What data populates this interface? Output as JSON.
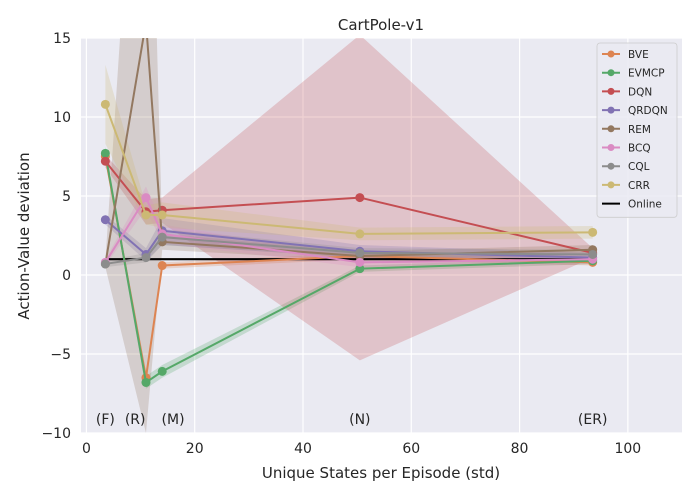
{
  "chart_data": {
    "type": "line",
    "title": "CartPole-v1",
    "xlabel": "Unique States per Episode (std)",
    "ylabel": "Action-Value deviation",
    "xlim": [
      -1,
      110
    ],
    "ylim": [
      -10,
      15
    ],
    "xticks": [
      0,
      20,
      40,
      60,
      80,
      100
    ],
    "yticks": [
      -10,
      -5,
      0,
      5,
      10,
      15
    ],
    "xtick_labels": [
      "0",
      "20",
      "40",
      "60",
      "80",
      "100"
    ],
    "ytick_labels": [
      "−10",
      "−5",
      "0",
      "5",
      "10",
      "15"
    ],
    "grid": true,
    "legend_position": "top-right",
    "x": [
      3.5,
      11,
      14,
      50.5,
      93.5
    ],
    "series": [
      {
        "name": "BVE",
        "color": "#dd8452",
        "values": [
          7.5,
          -6.5,
          0.6,
          1.2,
          0.8
        ],
        "band": [
          [
            7.2,
            7.8
          ],
          [
            -6.9,
            -6.1
          ],
          [
            0.4,
            0.8
          ],
          [
            1.0,
            1.4
          ],
          [
            0.6,
            1.0
          ]
        ]
      },
      {
        "name": "EVMCP",
        "color": "#55a868",
        "values": [
          7.7,
          -6.8,
          -6.1,
          0.4,
          0.9
        ],
        "band": [
          [
            7.3,
            8.1
          ],
          [
            -7.2,
            -6.4
          ],
          [
            -6.5,
            -5.7
          ],
          [
            0.2,
            0.6
          ],
          [
            0.7,
            1.1
          ]
        ]
      },
      {
        "name": "DQN",
        "color": "#c44e52",
        "values": [
          7.2,
          4.0,
          4.1,
          4.9,
          1.4
        ],
        "band": [
          [
            6.8,
            7.6
          ],
          [
            3.2,
            4.8
          ],
          [
            3.3,
            4.9
          ],
          [
            -5.4,
            15.2
          ],
          [
            1.1,
            1.7
          ]
        ]
      },
      {
        "name": "QRDQN",
        "color": "#8172b3",
        "values": [
          3.5,
          1.3,
          2.8,
          1.5,
          1.1
        ],
        "band": [
          [
            3.2,
            3.8
          ],
          [
            0.9,
            1.7
          ],
          [
            1.9,
            3.6
          ],
          [
            1.1,
            1.9
          ],
          [
            0.8,
            1.4
          ]
        ]
      },
      {
        "name": "REM",
        "color": "#937860",
        "values": [
          0.7,
          16.0,
          2.1,
          1.2,
          1.6
        ],
        "band": [
          [
            0.5,
            0.9
          ],
          [
            -10.0,
            40.0
          ],
          [
            1.6,
            2.6
          ],
          [
            0.9,
            1.5
          ],
          [
            1.3,
            1.9
          ]
        ]
      },
      {
        "name": "BCQ",
        "color": "#da8bc3",
        "values": [
          0.8,
          4.9,
          2.6,
          0.8,
          1.0
        ],
        "band": [
          [
            0.6,
            1.0
          ],
          [
            4.2,
            5.6
          ],
          [
            2.0,
            3.2
          ],
          [
            0.5,
            1.1
          ],
          [
            0.7,
            1.3
          ]
        ]
      },
      {
        "name": "CQL",
        "color": "#8c8c8c",
        "values": [
          0.7,
          1.1,
          2.4,
          1.4,
          1.3
        ],
        "band": [
          [
            0.5,
            0.9
          ],
          [
            0.8,
            1.4
          ],
          [
            1.9,
            2.9
          ],
          [
            1.1,
            1.7
          ],
          [
            1.0,
            1.6
          ]
        ]
      },
      {
        "name": "CRR",
        "color": "#ccb974",
        "values": [
          10.8,
          3.8,
          3.8,
          2.6,
          2.7
        ],
        "band": [
          [
            8.3,
            13.3
          ],
          [
            3.2,
            4.4
          ],
          [
            3.0,
            4.6
          ],
          [
            2.2,
            3.0
          ],
          [
            2.3,
            3.1
          ]
        ]
      }
    ],
    "reference_line": {
      "name": "Online",
      "y": 1.0,
      "x_range": [
        3.5,
        93.5
      ],
      "color": "#000000"
    },
    "annotations": [
      {
        "text": "(F)",
        "x": 3.5,
        "y": -9.1
      },
      {
        "text": "(R)",
        "x": 9.0,
        "y": -9.1
      },
      {
        "text": "(M)",
        "x": 16.0,
        "y": -9.1
      },
      {
        "text": "(N)",
        "x": 50.5,
        "y": -9.1
      },
      {
        "text": "(ER)",
        "x": 93.5,
        "y": -9.1
      }
    ]
  }
}
